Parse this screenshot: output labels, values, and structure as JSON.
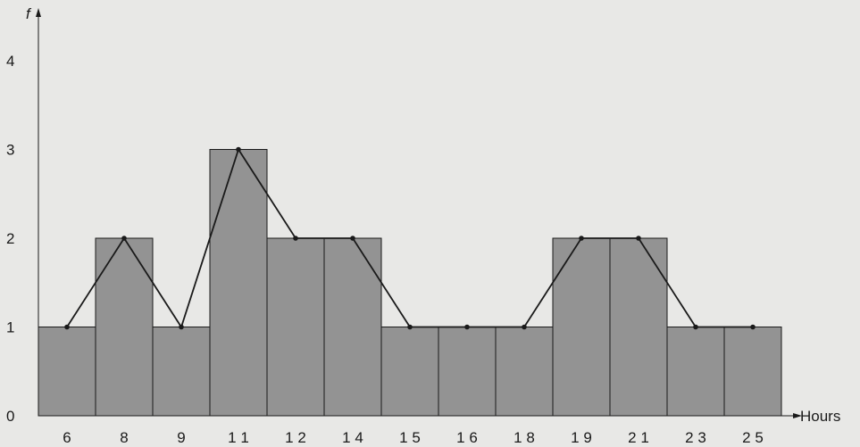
{
  "chart_data": {
    "type": "bar",
    "title": "",
    "xlabel": "Hours",
    "ylabel": "f",
    "ylim": [
      0,
      4
    ],
    "y_ticks": [
      "0",
      "1",
      "2",
      "3",
      "4"
    ],
    "categories": [
      "6",
      "8",
      "9",
      "1 1",
      "1 2",
      "1 4",
      "1 5",
      "1 6",
      "1 8",
      "1 9",
      "2 1",
      "2 3",
      "2 5"
    ],
    "values": [
      1,
      2,
      1,
      3,
      2,
      2,
      1,
      1,
      1,
      2,
      2,
      1,
      1
    ],
    "polygon": true,
    "colors": {
      "bar_fill": "#939393",
      "bar_stroke": "#1a1a1a",
      "line": "#1a1a1a",
      "background": "#e8e8e6"
    }
  }
}
